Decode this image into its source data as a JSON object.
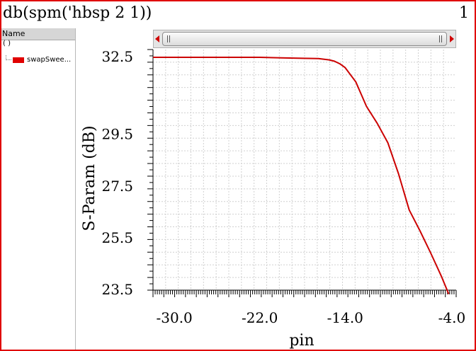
{
  "window": {
    "title": "db(spm('hbsp 2 1))",
    "page_number": "1"
  },
  "legend": {
    "header": "Name",
    "group_label": "(      )",
    "items": [
      {
        "label": "swapSwee...",
        "color": "#e00000"
      }
    ]
  },
  "chart_data": {
    "type": "line",
    "xlabel": "pin",
    "ylabel": "S-Param (dB)",
    "xlim": [
      -32.0,
      -3.6
    ],
    "ylim": [
      23.5,
      32.8
    ],
    "grid": true,
    "x_ticks": [
      -30.0,
      -22.0,
      -14.0,
      -4.0
    ],
    "x_tick_labels": [
      "-30.0",
      "-22.0",
      "-14.0",
      "-4.0"
    ],
    "y_ticks": [
      23.5,
      25.5,
      27.5,
      29.5,
      32.5
    ],
    "y_tick_labels": [
      "23.5",
      "25.5",
      "27.5",
      "29.5",
      "32.5"
    ],
    "series": [
      {
        "color": "#cc0000",
        "x": [
          -32.0,
          -26.0,
          -22.0,
          -20.0,
          -18.0,
          -16.5,
          -15.5,
          -15.0,
          -14.5,
          -14.0,
          -13.0,
          -12.0,
          -11.0,
          -10.0,
          -9.0,
          -8.0,
          -7.0,
          -6.0,
          -5.0,
          -4.3
        ],
        "y": [
          32.5,
          32.5,
          32.5,
          32.48,
          32.46,
          32.45,
          32.4,
          32.35,
          32.25,
          32.1,
          31.55,
          30.6,
          29.95,
          29.2,
          28.0,
          26.6,
          25.8,
          24.95,
          24.05,
          23.35
        ]
      }
    ]
  }
}
